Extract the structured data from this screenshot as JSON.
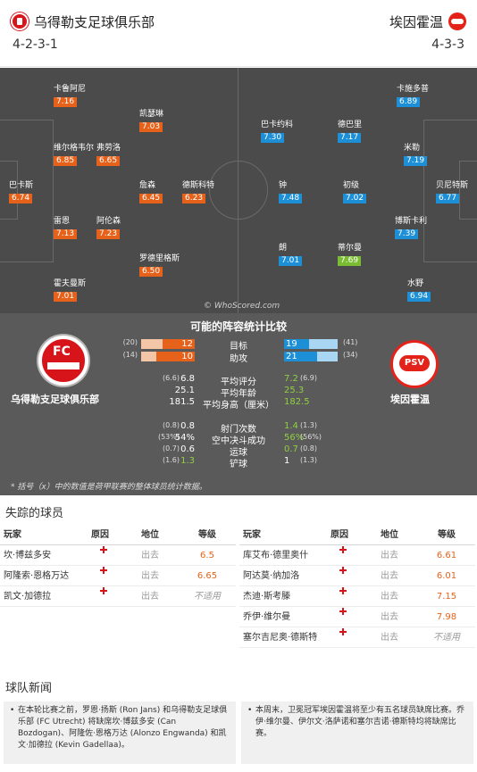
{
  "header": {
    "home_team": "乌得勒支足球俱乐部",
    "away_team": "埃因霍温",
    "home_formation": "4-2-3-1",
    "away_formation": "4-3-3"
  },
  "pitch": {
    "watermark": "© WhoScored.com",
    "home_players": [
      {
        "name": "卡鲁阿尼",
        "rating": "7.16"
      },
      {
        "name": "凯瑟琳",
        "rating": "7.03"
      },
      {
        "name": "维尔格韦尔",
        "rating": "6.85"
      },
      {
        "name": "弗劳洛",
        "rating": "6.65"
      },
      {
        "name": "巴卡斯",
        "rating": "6.74"
      },
      {
        "name": "詹森",
        "rating": "6.45"
      },
      {
        "name": "德斯科特",
        "rating": "6.23"
      },
      {
        "name": "雷恩",
        "rating": "7.13"
      },
      {
        "name": "阿伦森",
        "rating": "7.23"
      },
      {
        "name": "罗德里格斯",
        "rating": "6.50"
      },
      {
        "name": "霍夫曼斯",
        "rating": "7.01"
      }
    ],
    "away_players": [
      {
        "name": "卡施多普",
        "rating": "6.89"
      },
      {
        "name": "巴卡约科",
        "rating": "7.30"
      },
      {
        "name": "德巴里",
        "rating": "7.17"
      },
      {
        "name": "米勒",
        "rating": "7.19"
      },
      {
        "name": "钟",
        "rating": "7.48"
      },
      {
        "name": "初级",
        "rating": "7.02"
      },
      {
        "name": "贝尼特斯",
        "rating": "6.77"
      },
      {
        "name": "博斯卡利",
        "rating": "7.39"
      },
      {
        "name": "朗",
        "rating": "7.01"
      },
      {
        "name": "蒂尔曼",
        "rating": "7.69"
      },
      {
        "name": "水野",
        "rating": "6.94"
      }
    ]
  },
  "comparison": {
    "title": "可能的阵容统计比较",
    "home_name": "乌得勒支足球俱乐部",
    "away_name": "埃因霍温",
    "bar_stats": [
      {
        "label": "目标",
        "home": 12,
        "home_prev": "(20)",
        "away": 19,
        "away_prev": "(41)",
        "home_frac": 0.6,
        "away_frac": 0.46
      },
      {
        "label": "助攻",
        "home": 10,
        "home_prev": "(14)",
        "away": 21,
        "away_prev": "(34)",
        "home_frac": 0.71,
        "away_frac": 0.62
      }
    ],
    "value_stats": [
      {
        "label": "平均评分",
        "home": "6.8",
        "home_prev": "(6.6)",
        "away": "7.2",
        "away_prev": "(6.9)",
        "away_green": true
      },
      {
        "label": "平均年龄",
        "home": "25.1",
        "home_prev": "",
        "away": "25.3",
        "away_prev": "",
        "away_green": true
      },
      {
        "label": "平均身高（厘米）",
        "home": "181.5",
        "home_prev": "",
        "away": "182.5",
        "away_prev": "",
        "away_green": true
      },
      {
        "label": "射门次数",
        "home": "0.8",
        "home_prev": "(0.8)",
        "away": "1.4",
        "away_prev": "(1.3)",
        "away_green": true
      },
      {
        "label": "空中决斗成功",
        "home": "54%",
        "home_prev": "(53%)",
        "away": "56%",
        "away_prev": "(56%)",
        "away_green": true
      },
      {
        "label": "运球",
        "home": "0.6",
        "home_prev": "(0.7)",
        "away": "0.7",
        "away_prev": "(0.8)",
        "away_green": true
      },
      {
        "label": "铲球",
        "home": "1.3",
        "home_prev": "(1.6)",
        "away": "1",
        "away_prev": "(1.3)",
        "home_green": true
      }
    ],
    "footnote": "* 括号（x）中的数值是荷甲联赛的整体球员统计数据。"
  },
  "missing": {
    "title": "失踪的球员",
    "headers": {
      "player": "玩家",
      "reason": "原因",
      "position": "地位",
      "grade": "等级"
    },
    "home": [
      {
        "name": "坎·博兹多安",
        "position": "出去",
        "grade": "6.5"
      },
      {
        "name": "阿隆索·恩格万达",
        "position": "出去",
        "grade": "6.65"
      },
      {
        "name": "凯文·加德拉",
        "position": "出去",
        "grade": "不适用"
      }
    ],
    "away": [
      {
        "name": "库艾布·德里奥什",
        "position": "出去",
        "grade": "6.61"
      },
      {
        "name": "阿达莫·纳加洛",
        "position": "出去",
        "grade": "6.01"
      },
      {
        "name": "杰迪·斯考滕",
        "position": "出去",
        "grade": "7.15"
      },
      {
        "name": "乔伊·维尔曼",
        "position": "出去",
        "grade": "7.98"
      },
      {
        "name": "塞尔吉尼奥·德斯特",
        "position": "出去",
        "grade": "不适用"
      }
    ]
  },
  "news": {
    "title": "球队新闻",
    "home_text": "在本轮比赛之前，罗恩·扬斯 (Ron Jans) 和乌得勒支足球俱乐部 (FC Utrecht) 将缺席坎·博兹多安 (Can Bozdogan)、阿隆佐·恩格万达 (Alonzo Engwanda) 和凯文·加德拉 (Kevin Gadellaa)。",
    "away_text": "本周末，卫冕冠军埃因霍温将至少有五名球员缺席比赛。乔伊·维尔曼、伊尔文·洛萨诺和塞尔吉诺·德斯特均将缺席比赛。"
  },
  "colors": {
    "home_accent": "#e6621b",
    "away_accent": "#1d8fd6",
    "better": "#8fd13f"
  }
}
